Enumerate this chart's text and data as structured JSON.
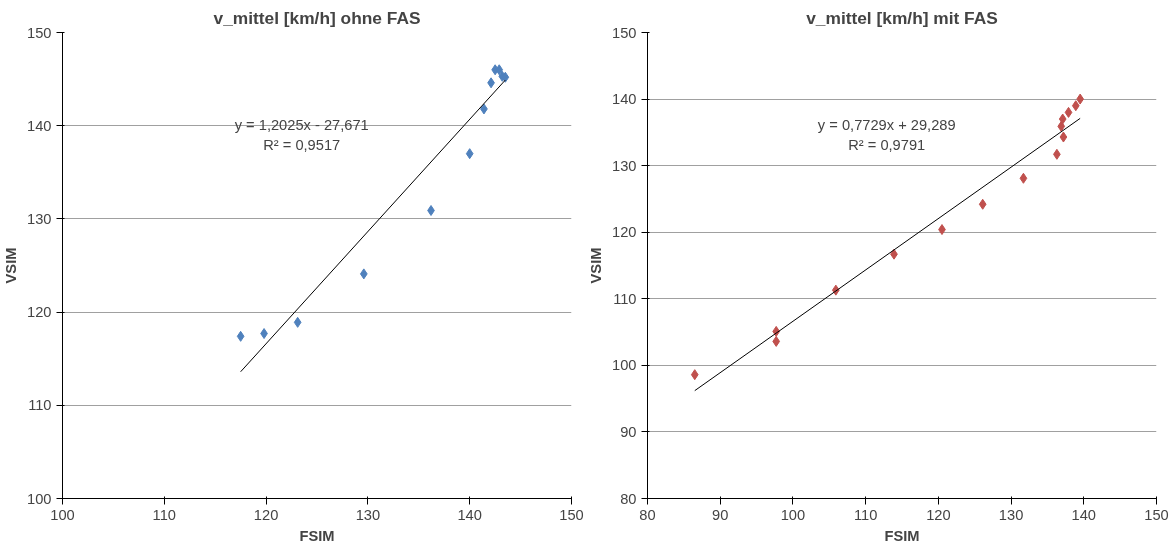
{
  "chart_data": [
    {
      "type": "scatter",
      "title": "v_mittel [km/h] ohne FAS",
      "xlabel": "FSIM",
      "ylabel": "VSIM",
      "xlim": [
        100,
        150
      ],
      "xticks": [
        100,
        110,
        120,
        130,
        140,
        150
      ],
      "ylim": [
        100,
        150
      ],
      "yticks": [
        100,
        110,
        120,
        130,
        140,
        150
      ],
      "grid": "y",
      "marker": "diamond",
      "series": [
        {
          "color": "#4f81bd",
          "x": [
            117.5,
            119.8,
            123.1,
            129.6,
            136.2,
            140.0,
            141.4,
            142.1,
            142.5,
            142.9,
            143.2,
            143.5
          ],
          "values": [
            117.4,
            117.7,
            118.9,
            124.1,
            130.9,
            137.0,
            141.8,
            144.6,
            146.0,
            146.0,
            145.3,
            145.2
          ]
        },
        {
          "type": "line",
          "color": "#000000",
          "marker": "none",
          "x": [
            117.5,
            143.5
          ],
          "values": [
            113.6,
            144.9
          ]
        }
      ],
      "annotations": [
        "y = 1,2025x - 27,671\nR² = 0,9517"
      ]
    },
    {
      "type": "scatter",
      "title": "v_mittel [km/h] mit FAS",
      "xlabel": "FSIM",
      "ylabel": "VSIM",
      "xlim": [
        80,
        150
      ],
      "xticks": [
        80,
        90,
        100,
        110,
        120,
        130,
        140,
        150
      ],
      "ylim": [
        80,
        150
      ],
      "yticks": [
        80,
        90,
        100,
        110,
        120,
        130,
        140,
        150
      ],
      "grid": "y",
      "marker": "diamond",
      "series": [
        {
          "color": "#c0504d",
          "x": [
            86.5,
            97.7,
            97.7,
            105.9,
            113.9,
            120.5,
            126.1,
            131.7,
            136.3,
            137.2,
            136.9,
            137.1,
            137.9,
            138.9,
            139.5
          ],
          "values": [
            98.6,
            105.1,
            103.6,
            111.3,
            116.7,
            120.4,
            124.2,
            128.1,
            131.7,
            134.3,
            135.9,
            137.0,
            138.0,
            139.0,
            140.0
          ]
        },
        {
          "type": "line",
          "color": "#000000",
          "marker": "none",
          "x": [
            86.5,
            139.5
          ],
          "values": [
            96.2,
            137.1
          ]
        }
      ],
      "annotations": [
        "y = 0,7729x + 29,289\nR² = 0,9791"
      ]
    }
  ]
}
